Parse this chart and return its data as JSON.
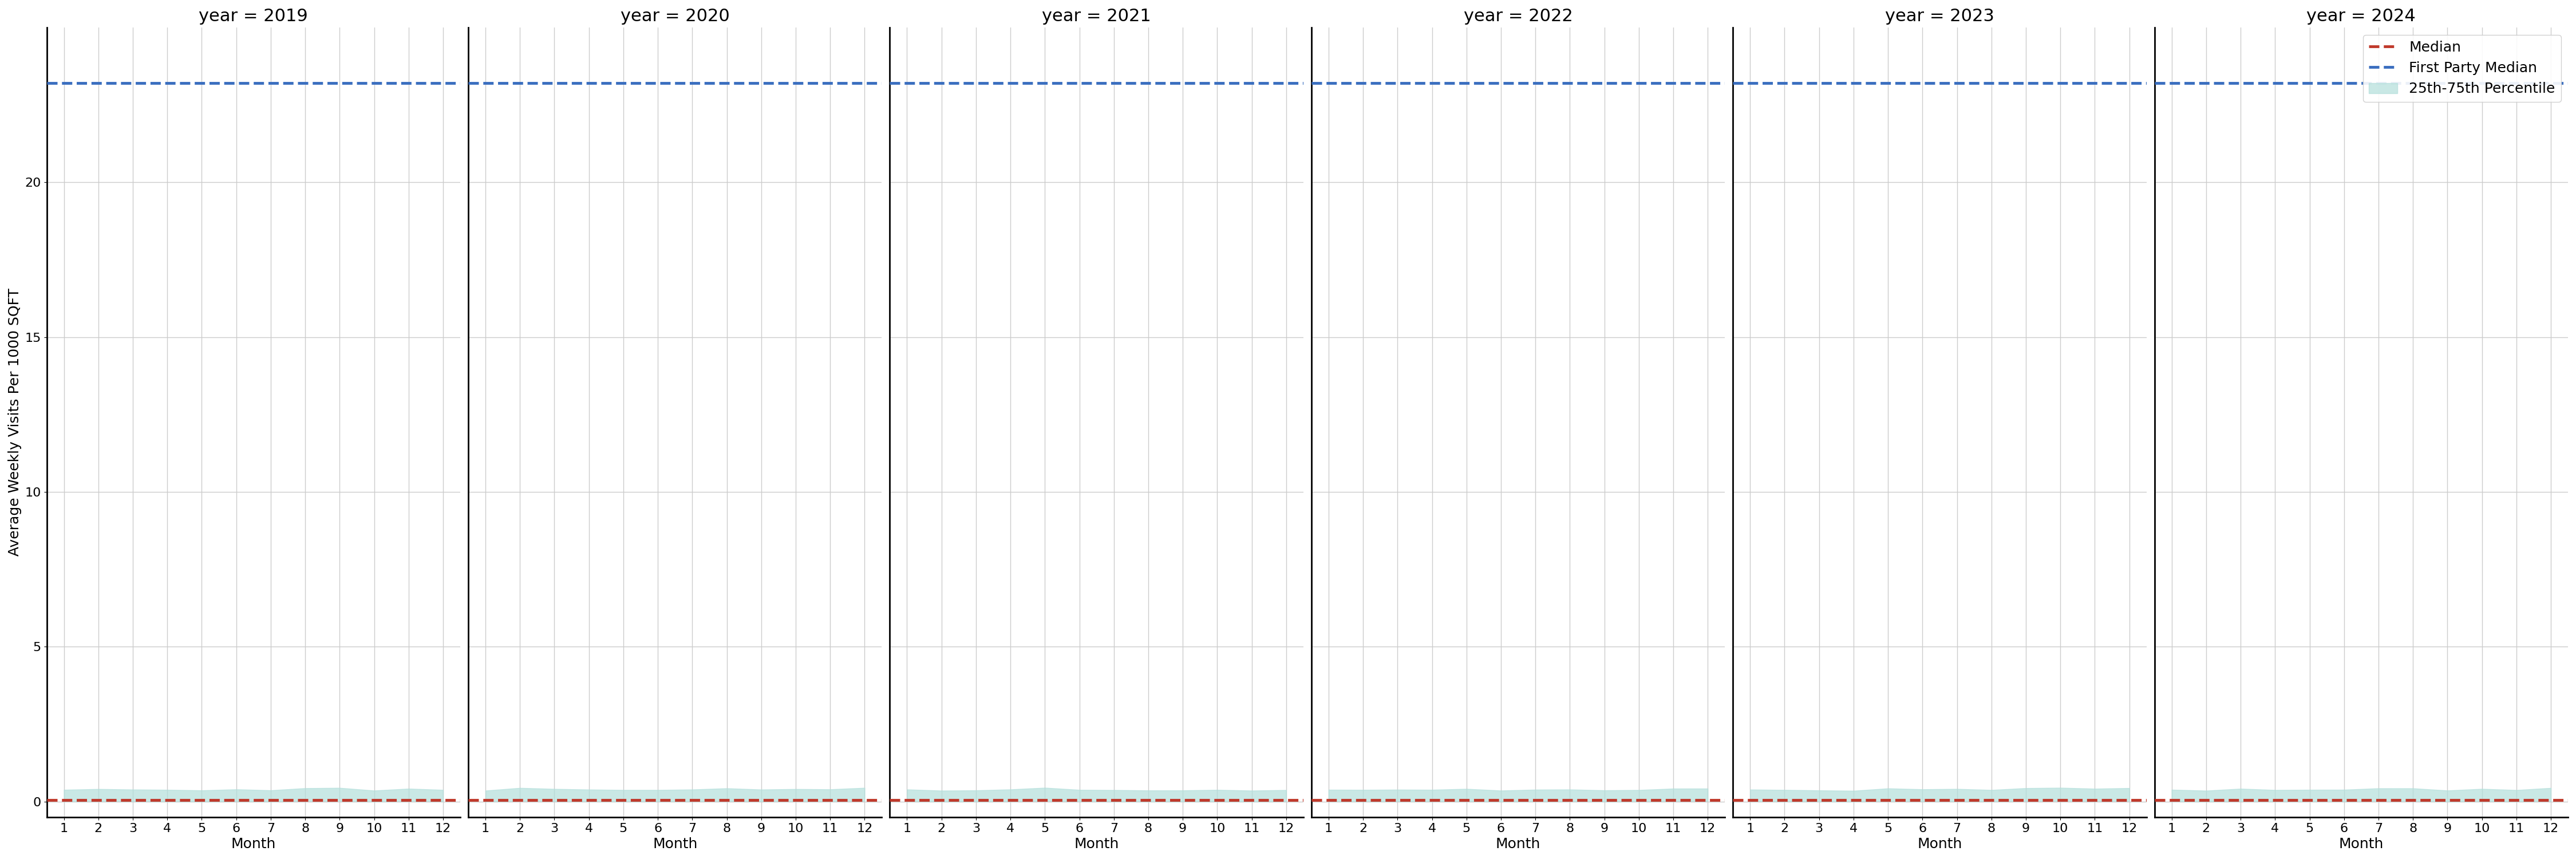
{
  "years": [
    2019,
    2020,
    2021,
    2022,
    2023,
    2024
  ],
  "months": [
    1,
    2,
    3,
    4,
    5,
    6,
    7,
    8,
    9,
    10,
    11,
    12
  ],
  "median_value": 0.05,
  "first_party_median_value": 23.2,
  "percentile_25": 0.0,
  "percentile_75": 0.35,
  "median_color": "#c0392b",
  "first_party_color": "#3a6ebf",
  "percentile_color": "#b2dfdb",
  "ylabel": "Average Weekly Visits Per 1000 SQFT",
  "xlabel": "Month",
  "ylim": [
    -0.5,
    25.0
  ],
  "yticks": [
    0,
    5,
    10,
    15,
    20
  ],
  "xticks": [
    1,
    2,
    3,
    4,
    5,
    6,
    7,
    8,
    9,
    10,
    11,
    12
  ],
  "legend_labels": [
    "Median",
    "First Party Median",
    "25th-75th Percentile"
  ],
  "background_color": "#ffffff",
  "grid_color": "#cccccc",
  "title_fontsize": 22,
  "label_fontsize": 18,
  "tick_fontsize": 16,
  "legend_fontsize": 18
}
